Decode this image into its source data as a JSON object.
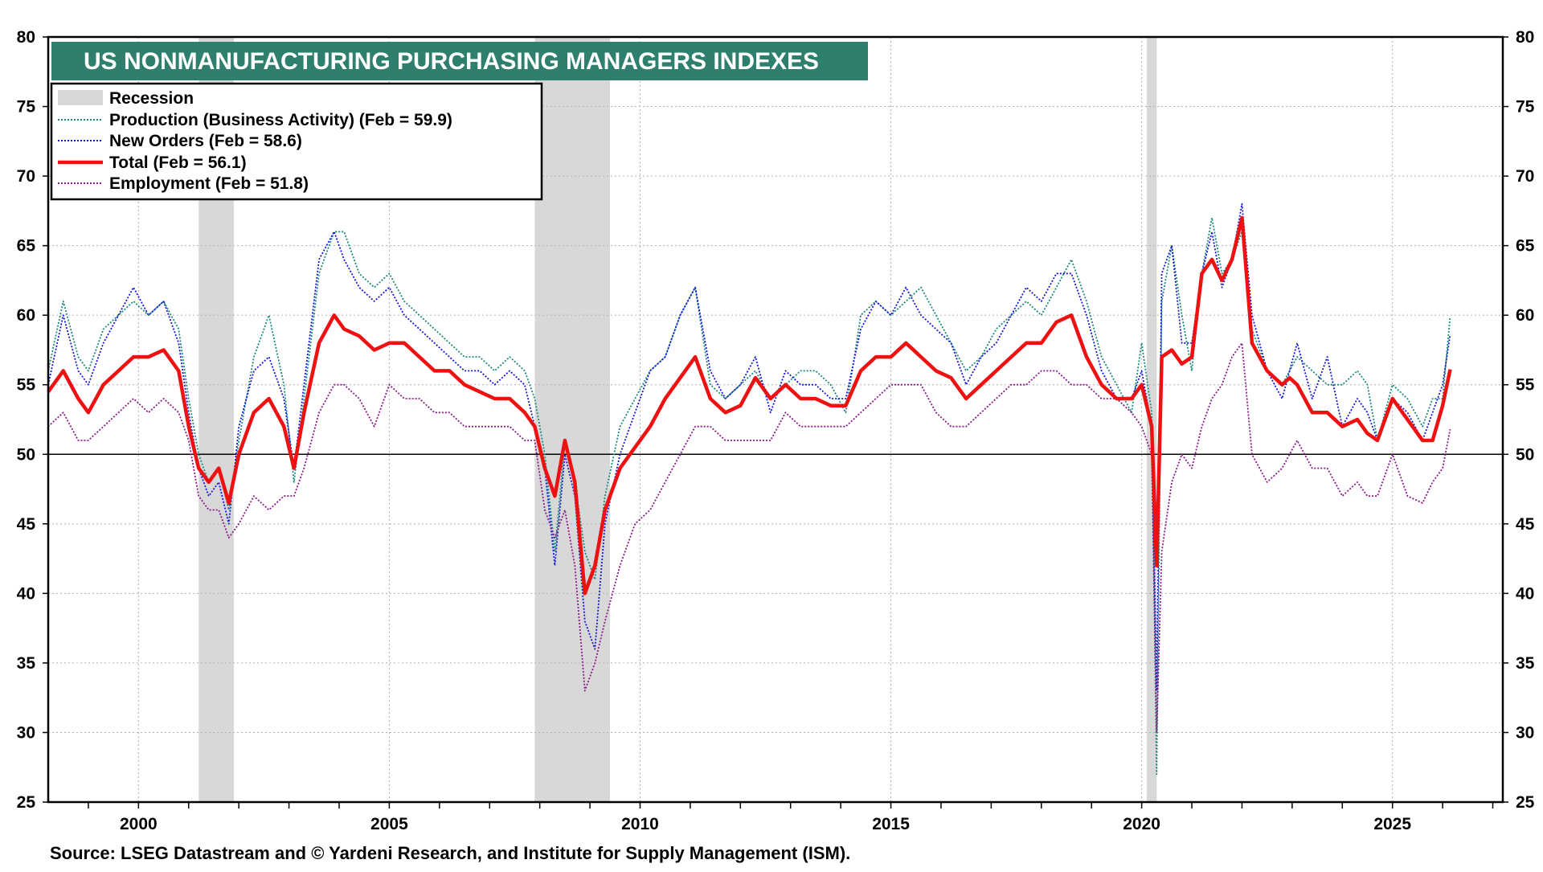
{
  "chart_data": {
    "type": "line",
    "title": "US NONMANUFACTURING PURCHASING MANAGERS INDEXES",
    "source": "Source: LSEG Datastream and © Yardeni Research, and Institute for Supply Management (ISM).",
    "xlabel": "",
    "ylabel": "",
    "xlim": [
      1998.2,
      2027.2
    ],
    "ylim": [
      25,
      80
    ],
    "yticks": [
      "25",
      "30",
      "35",
      "40",
      "45",
      "50",
      "55",
      "60",
      "65",
      "70",
      "75",
      "80"
    ],
    "xticks": [
      "2000",
      "2005",
      "2010",
      "2015",
      "2020",
      "2025"
    ],
    "reference_line": 50,
    "grid": true,
    "legend_position": "top-left",
    "recession_label": "Recession",
    "recessions": [
      [
        2001.2,
        2001.9
      ],
      [
        2007.9,
        2009.4
      ],
      [
        2020.1,
        2020.3
      ]
    ],
    "series": [
      {
        "name": "Production  (Business Activity) (Feb = 59.9)",
        "color": "#1a8a7a",
        "style": "dotted",
        "x": [
          1998.2,
          1998.5,
          1998.8,
          1999.0,
          1999.3,
          1999.6,
          1999.9,
          2000.2,
          2000.5,
          2000.8,
          2001.0,
          2001.2,
          2001.4,
          2001.6,
          2001.8,
          2002.0,
          2002.3,
          2002.6,
          2002.9,
          2003.1,
          2003.3,
          2003.6,
          2003.9,
          2004.1,
          2004.4,
          2004.7,
          2005.0,
          2005.3,
          2005.6,
          2005.9,
          2006.2,
          2006.5,
          2006.8,
          2007.1,
          2007.4,
          2007.7,
          2007.9,
          2008.1,
          2008.3,
          2008.5,
          2008.7,
          2008.9,
          2009.1,
          2009.3,
          2009.6,
          2009.9,
          2010.2,
          2010.5,
          2010.8,
          2011.1,
          2011.4,
          2011.7,
          2012.0,
          2012.3,
          2012.6,
          2012.9,
          2013.2,
          2013.5,
          2013.8,
          2014.1,
          2014.4,
          2014.7,
          2015.0,
          2015.3,
          2015.6,
          2015.9,
          2016.2,
          2016.5,
          2016.8,
          2017.1,
          2017.4,
          2017.7,
          2018.0,
          2018.3,
          2018.6,
          2018.9,
          2019.2,
          2019.5,
          2019.8,
          2020.0,
          2020.2,
          2020.3,
          2020.4,
          2020.6,
          2020.8,
          2021.0,
          2021.2,
          2021.4,
          2021.6,
          2021.8,
          2022.0,
          2022.2,
          2022.5,
          2022.8,
          2022.95,
          2023.1,
          2023.4,
          2023.7,
          2024.0,
          2024.3,
          2024.5,
          2024.7,
          2025.0,
          2025.3,
          2025.6,
          2025.8,
          2026.0,
          2026.15
        ],
        "values": [
          56,
          61,
          57,
          56,
          59,
          60,
          61,
          60,
          61,
          59,
          54,
          50,
          48,
          49,
          46,
          51,
          57,
          60,
          55,
          48,
          54,
          63,
          66,
          66,
          63,
          62,
          63,
          61,
          60,
          59,
          58,
          57,
          57,
          56,
          57,
          56,
          54,
          50,
          43,
          51,
          48,
          43,
          41,
          47,
          52,
          54,
          56,
          57,
          60,
          62,
          55,
          54,
          55,
          56,
          54,
          55,
          56,
          56,
          55,
          53,
          60,
          61,
          60,
          61,
          62,
          60,
          58,
          56,
          57,
          59,
          60,
          61,
          60,
          62,
          64,
          61,
          57,
          55,
          53,
          58,
          53,
          27,
          61,
          65,
          60,
          56,
          63,
          67,
          63,
          64,
          66,
          59,
          56,
          55,
          56,
          57,
          56,
          55,
          55,
          56,
          55,
          51,
          55,
          54,
          52,
          54,
          54,
          59.9
        ]
      },
      {
        "name": "New Orders (Feb = 58.6)",
        "color": "#1616d8",
        "style": "dotted",
        "x": [
          1998.2,
          1998.5,
          1998.8,
          1999.0,
          1999.3,
          1999.6,
          1999.9,
          2000.2,
          2000.5,
          2000.8,
          2001.0,
          2001.2,
          2001.4,
          2001.6,
          2001.8,
          2002.0,
          2002.3,
          2002.6,
          2002.9,
          2003.1,
          2003.3,
          2003.6,
          2003.9,
          2004.1,
          2004.4,
          2004.7,
          2005.0,
          2005.3,
          2005.6,
          2005.9,
          2006.2,
          2006.5,
          2006.8,
          2007.1,
          2007.4,
          2007.7,
          2007.9,
          2008.1,
          2008.3,
          2008.5,
          2008.7,
          2008.9,
          2009.1,
          2009.3,
          2009.6,
          2009.9,
          2010.2,
          2010.5,
          2010.8,
          2011.1,
          2011.4,
          2011.7,
          2012.0,
          2012.3,
          2012.6,
          2012.9,
          2013.2,
          2013.5,
          2013.8,
          2014.1,
          2014.4,
          2014.7,
          2015.0,
          2015.3,
          2015.6,
          2015.9,
          2016.2,
          2016.5,
          2016.8,
          2017.1,
          2017.4,
          2017.7,
          2018.0,
          2018.3,
          2018.6,
          2018.9,
          2019.2,
          2019.5,
          2019.8,
          2020.0,
          2020.2,
          2020.3,
          2020.4,
          2020.6,
          2020.8,
          2021.0,
          2021.2,
          2021.4,
          2021.6,
          2021.8,
          2022.0,
          2022.2,
          2022.5,
          2022.8,
          2022.95,
          2023.1,
          2023.4,
          2023.7,
          2024.0,
          2024.3,
          2024.5,
          2024.7,
          2025.0,
          2025.3,
          2025.6,
          2025.8,
          2026.0,
          2026.15
        ],
        "values": [
          55,
          60,
          56,
          55,
          58,
          60,
          62,
          60,
          61,
          58,
          53,
          49,
          47,
          48,
          45,
          52,
          56,
          57,
          54,
          49,
          55,
          64,
          66,
          64,
          62,
          61,
          62,
          60,
          59,
          58,
          57,
          56,
          56,
          55,
          56,
          55,
          52,
          49,
          42,
          50,
          47,
          38,
          36,
          45,
          50,
          53,
          56,
          57,
          60,
          62,
          56,
          54,
          55,
          57,
          53,
          56,
          55,
          55,
          54,
          54,
          59,
          61,
          60,
          62,
          60,
          59,
          58,
          55,
          57,
          58,
          60,
          62,
          61,
          63,
          63,
          60,
          56,
          54,
          54,
          56,
          52,
          33,
          63,
          65,
          58,
          58,
          63,
          66,
          62,
          64,
          68,
          60,
          56,
          54,
          56,
          58,
          54,
          57,
          52,
          54,
          53,
          51,
          54,
          53,
          51,
          53,
          55,
          58.6
        ]
      },
      {
        "name": "Total  (Feb = 56.1)",
        "color": "#ee1111",
        "style": "solid",
        "x": [
          1998.2,
          1998.5,
          1998.8,
          1999.0,
          1999.3,
          1999.6,
          1999.9,
          2000.2,
          2000.5,
          2000.8,
          2001.0,
          2001.2,
          2001.4,
          2001.6,
          2001.8,
          2002.0,
          2002.3,
          2002.6,
          2002.9,
          2003.1,
          2003.3,
          2003.6,
          2003.9,
          2004.1,
          2004.4,
          2004.7,
          2005.0,
          2005.3,
          2005.6,
          2005.9,
          2006.2,
          2006.5,
          2006.8,
          2007.1,
          2007.4,
          2007.7,
          2007.9,
          2008.1,
          2008.3,
          2008.5,
          2008.7,
          2008.9,
          2009.1,
          2009.3,
          2009.6,
          2009.9,
          2010.2,
          2010.5,
          2010.8,
          2011.1,
          2011.4,
          2011.7,
          2012.0,
          2012.3,
          2012.6,
          2012.9,
          2013.2,
          2013.5,
          2013.8,
          2014.1,
          2014.4,
          2014.7,
          2015.0,
          2015.3,
          2015.6,
          2015.9,
          2016.2,
          2016.5,
          2016.8,
          2017.1,
          2017.4,
          2017.7,
          2018.0,
          2018.3,
          2018.6,
          2018.9,
          2019.2,
          2019.5,
          2019.8,
          2020.0,
          2020.2,
          2020.3,
          2020.4,
          2020.6,
          2020.8,
          2021.0,
          2021.2,
          2021.4,
          2021.6,
          2021.8,
          2022.0,
          2022.2,
          2022.5,
          2022.8,
          2022.95,
          2023.1,
          2023.4,
          2023.7,
          2024.0,
          2024.3,
          2024.5,
          2024.7,
          2025.0,
          2025.3,
          2025.6,
          2025.8,
          2026.0,
          2026.15
        ],
        "values": [
          54.5,
          56,
          54,
          53,
          55,
          56,
          57,
          57,
          57.5,
          56,
          52,
          49,
          48,
          49,
          46.5,
          50,
          53,
          54,
          52,
          49,
          53,
          58,
          60,
          59,
          58.5,
          57.5,
          58,
          58,
          57,
          56,
          56,
          55,
          54.5,
          54,
          54,
          53,
          52,
          49,
          47,
          51,
          48,
          40,
          42,
          46,
          49,
          50.5,
          52,
          54,
          55.5,
          57,
          54,
          53,
          53.5,
          55.5,
          54,
          55,
          54,
          54,
          53.5,
          53.5,
          56,
          57,
          57,
          58,
          57,
          56,
          55.5,
          54,
          55,
          56,
          57,
          58,
          58,
          59.5,
          60,
          57,
          55,
          54,
          54,
          55,
          52,
          42,
          57,
          57.5,
          56.5,
          57,
          63,
          64,
          62.5,
          64,
          67,
          58,
          56,
          55,
          55.5,
          55,
          53,
          53,
          52,
          52.5,
          51.5,
          51,
          54,
          52.5,
          51,
          51,
          53.5,
          56.1
        ]
      },
      {
        "name": "Employment  (Feb = 51.8)",
        "color": "#8a1a8a",
        "style": "dotted",
        "x": [
          1998.2,
          1998.5,
          1998.8,
          1999.0,
          1999.3,
          1999.6,
          1999.9,
          2000.2,
          2000.5,
          2000.8,
          2001.0,
          2001.2,
          2001.4,
          2001.6,
          2001.8,
          2002.0,
          2002.3,
          2002.6,
          2002.9,
          2003.1,
          2003.3,
          2003.6,
          2003.9,
          2004.1,
          2004.4,
          2004.7,
          2005.0,
          2005.3,
          2005.6,
          2005.9,
          2006.2,
          2006.5,
          2006.8,
          2007.1,
          2007.4,
          2007.7,
          2007.9,
          2008.1,
          2008.3,
          2008.5,
          2008.7,
          2008.9,
          2009.1,
          2009.3,
          2009.6,
          2009.9,
          2010.2,
          2010.5,
          2010.8,
          2011.1,
          2011.4,
          2011.7,
          2012.0,
          2012.3,
          2012.6,
          2012.9,
          2013.2,
          2013.5,
          2013.8,
          2014.1,
          2014.4,
          2014.7,
          2015.0,
          2015.3,
          2015.6,
          2015.9,
          2016.2,
          2016.5,
          2016.8,
          2017.1,
          2017.4,
          2017.7,
          2018.0,
          2018.3,
          2018.6,
          2018.9,
          2019.2,
          2019.5,
          2019.8,
          2020.0,
          2020.2,
          2020.3,
          2020.4,
          2020.6,
          2020.8,
          2021.0,
          2021.2,
          2021.4,
          2021.6,
          2021.8,
          2022.0,
          2022.2,
          2022.5,
          2022.8,
          2022.95,
          2023.1,
          2023.4,
          2023.7,
          2024.0,
          2024.3,
          2024.5,
          2024.7,
          2025.0,
          2025.3,
          2025.6,
          2025.8,
          2026.0,
          2026.15
        ],
        "values": [
          52,
          53,
          51,
          51,
          52,
          53,
          54,
          53,
          54,
          53,
          51,
          47,
          46,
          46,
          44,
          45,
          47,
          46,
          47,
          47,
          49,
          53,
          55,
          55,
          54,
          52,
          55,
          54,
          54,
          53,
          53,
          52,
          52,
          52,
          52,
          51,
          51,
          46,
          44,
          46,
          42,
          33,
          35,
          38,
          42,
          45,
          46,
          48,
          50,
          52,
          52,
          51,
          51,
          51,
          51,
          53,
          52,
          52,
          52,
          52,
          53,
          54,
          55,
          55,
          55,
          53,
          52,
          52,
          53,
          54,
          55,
          55,
          56,
          56,
          55,
          55,
          54,
          54,
          53,
          52,
          50,
          30,
          43,
          48,
          50,
          49,
          52,
          54,
          55,
          57,
          58,
          50,
          48,
          49,
          50,
          51,
          49,
          49,
          47,
          48,
          47,
          47,
          50,
          47,
          46.5,
          48,
          49,
          51.8
        ]
      }
    ]
  }
}
